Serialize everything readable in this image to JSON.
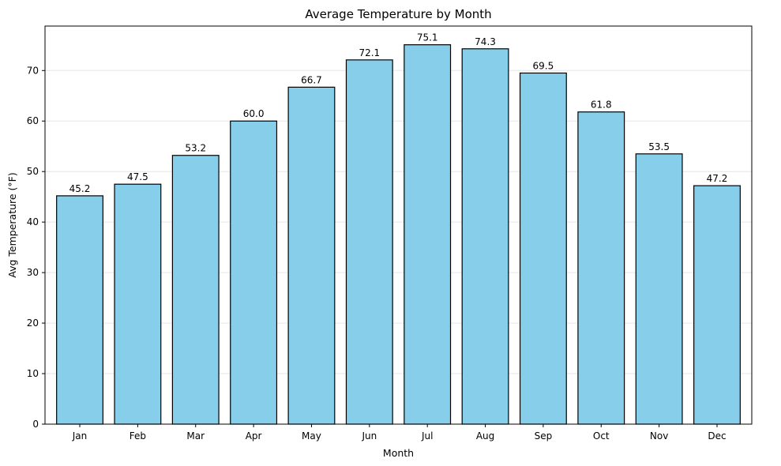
{
  "chart_data": {
    "type": "bar",
    "title": "Average Temperature by Month",
    "xlabel": "Month",
    "ylabel": "Avg Temperature (°F)",
    "categories": [
      "Jan",
      "Feb",
      "Mar",
      "Apr",
      "May",
      "Jun",
      "Jul",
      "Aug",
      "Sep",
      "Oct",
      "Nov",
      "Dec"
    ],
    "values": [
      45.2,
      47.5,
      53.2,
      60.0,
      66.7,
      72.1,
      75.1,
      74.3,
      69.5,
      61.8,
      53.5,
      47.2
    ],
    "data_labels": [
      "45.2",
      "47.5",
      "53.2",
      "60.0",
      "66.7",
      "72.1",
      "75.1",
      "74.3",
      "69.5",
      "61.8",
      "53.5",
      "47.2"
    ],
    "ylim": [
      0,
      78.8
    ],
    "yticks": [
      0,
      10,
      20,
      30,
      40,
      50,
      60,
      70
    ],
    "grid": "y",
    "legend": "none",
    "colors": {
      "bar_fill": "#87ceeb",
      "bar_edge": "#000000",
      "grid": "#e6e6e6",
      "axis": "#000000"
    }
  }
}
